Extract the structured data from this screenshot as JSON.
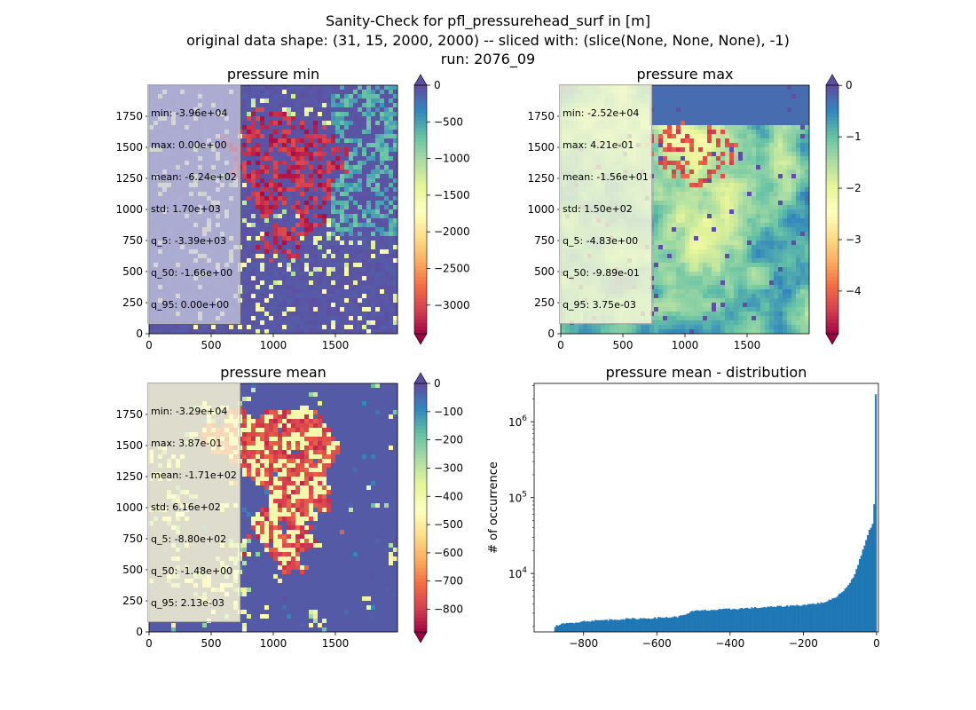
{
  "figure": {
    "title_lines": [
      "Sanity-Check for pfl_pressurehead_surf in [m]",
      "original data shape: (31, 15, 2000, 2000) -- sliced with: (slice(None, None, None), -1)",
      "run: 2076_09"
    ]
  },
  "colors": {
    "spectral": [
      "#9e0142",
      "#d53e4f",
      "#f46d43",
      "#fdae61",
      "#fee08b",
      "#ffffbf",
      "#e6f598",
      "#abdda4",
      "#66c2a5",
      "#3288bd",
      "#5e4fa2"
    ],
    "hist_bar": "#1f77b4"
  },
  "chart_data": [
    {
      "type": "heatmap",
      "title": "pressure min",
      "xticks": [
        0,
        500,
        1000,
        1500
      ],
      "yticks": [
        0,
        250,
        500,
        750,
        1000,
        1250,
        1500,
        1750
      ],
      "xlim": [
        0,
        2000
      ],
      "ylim": [
        0,
        2000
      ],
      "colorbar": {
        "vmin": -3390,
        "vmax": 0,
        "ticks": [
          0,
          -500,
          -1000,
          -1500,
          -2000,
          -2500,
          -3000
        ],
        "tick_labels": [
          "0",
          "−500",
          "−1000",
          "−1500",
          "−2000",
          "−2500",
          "−3000"
        ],
        "extend": "both"
      },
      "stats": [
        "min: -3.96e+04",
        "max: 0.00e+00",
        "mean: -6.24e+02",
        "std: 1.70e+03",
        "q_5: -3.39e+03",
        "q_50: -1.66e+00",
        "q_95: 0.00e+00"
      ],
      "stats_box": "lavender"
    },
    {
      "type": "heatmap",
      "title": "pressure max",
      "xticks": [
        0,
        500,
        1000,
        1500
      ],
      "yticks": [
        0,
        250,
        500,
        750,
        1000,
        1250,
        1500,
        1750
      ],
      "xlim": [
        0,
        2000
      ],
      "ylim": [
        0,
        2000
      ],
      "colorbar": {
        "vmin": -4.83,
        "vmax": 0.00375,
        "ticks": [
          0,
          -1,
          -2,
          -3,
          -4
        ],
        "tick_labels": [
          "0",
          "−1",
          "−2",
          "−3",
          "−4"
        ],
        "extend": "both"
      },
      "stats": [
        "min: -2.52e+04",
        "max: 4.21e-01",
        "mean: -1.56e+01",
        "std: 1.50e+02",
        "q_5: -4.83e+00",
        "q_50: -9.89e-01",
        "q_95: 3.75e-03"
      ],
      "stats_box": "cream"
    },
    {
      "type": "heatmap",
      "title": "pressure mean",
      "xticks": [
        0,
        500,
        1000,
        1500
      ],
      "yticks": [
        0,
        250,
        500,
        750,
        1000,
        1250,
        1500,
        1750
      ],
      "xlim": [
        0,
        2000
      ],
      "ylim": [
        0,
        2000
      ],
      "colorbar": {
        "vmin": -880,
        "vmax": 0.00213,
        "ticks": [
          0,
          -100,
          -200,
          -300,
          -400,
          -500,
          -600,
          -700,
          -800
        ],
        "tick_labels": [
          "0",
          "−100",
          "−200",
          "−300",
          "−400",
          "−500",
          "−600",
          "−700",
          "−800"
        ],
        "extend": "both"
      },
      "stats": [
        "min: -3.29e+04",
        "max: 3.87e-01",
        "mean: -1.71e+02",
        "std: 6.16e+02",
        "q_5: -8.80e+02",
        "q_50: -1.48e+00",
        "q_95: 2.13e-03"
      ],
      "stats_box": "cream"
    },
    {
      "type": "bar",
      "title": "pressure mean - distribution",
      "ylabel": "# of occurrence",
      "yscale": "log",
      "xlim": [
        -935,
        5
      ],
      "ylim": [
        1700,
        3200000
      ],
      "xticks": [
        -800,
        -600,
        -400,
        -200,
        0
      ],
      "xtick_labels": [
        "−800",
        "−600",
        "−400",
        "−200",
        "0"
      ],
      "yticks": [
        10000,
        100000,
        1000000
      ],
      "ytick_labels": [
        "10^4",
        "10^5",
        "10^6"
      ],
      "bins": [
        -880,
        0
      ],
      "x_profile": [
        -880,
        -860,
        -800,
        -700,
        -600,
        -540,
        -500,
        -400,
        -300,
        -200,
        -150,
        -120,
        -100,
        -80,
        -60,
        -50,
        -40,
        -30,
        -20,
        -10,
        -5,
        -2,
        0
      ],
      "y_profile": [
        2000,
        2150,
        2350,
        2500,
        2600,
        2700,
        3200,
        3400,
        3600,
        3850,
        4100,
        4600,
        5400,
        6700,
        9700,
        13500,
        18500,
        26000,
        38000,
        45000,
        65000,
        350000,
        2300000
      ]
    }
  ]
}
